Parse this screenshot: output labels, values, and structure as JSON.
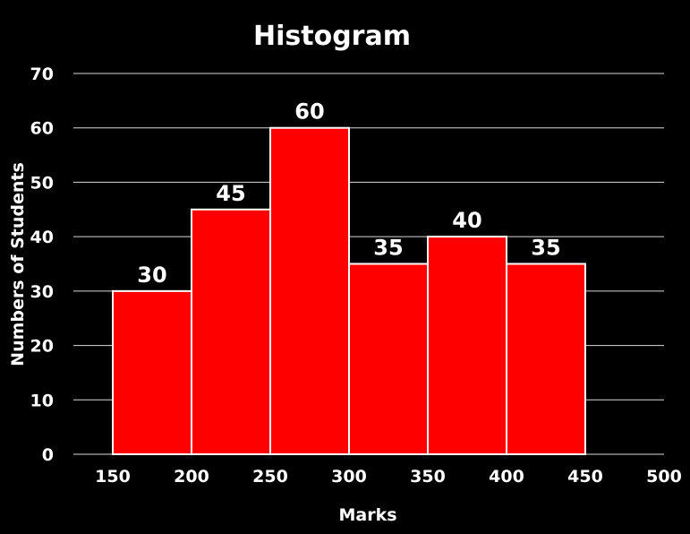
{
  "chart_data": {
    "type": "bar",
    "title": "Histogram",
    "xlabel": "Marks",
    "ylabel": "Numbers of Students",
    "bins": [
      [
        150,
        200
      ],
      [
        200,
        250
      ],
      [
        250,
        300
      ],
      [
        300,
        350
      ],
      [
        350,
        400
      ],
      [
        400,
        450
      ]
    ],
    "values": [
      30,
      45,
      60,
      35,
      40,
      35
    ],
    "x_ticks": [
      150,
      200,
      250,
      300,
      350,
      400,
      450,
      500
    ],
    "y_ticks": [
      0,
      10,
      20,
      30,
      40,
      50,
      60,
      70
    ],
    "xlim": [
      125,
      500
    ],
    "ylim": [
      0,
      70
    ],
    "grid": true,
    "bar_color": "#ff0000",
    "bar_edge_color": "#ffffff",
    "background_color": "#000000",
    "gridline_color": "#d9d9d9",
    "text_color": "#ffffff"
  }
}
